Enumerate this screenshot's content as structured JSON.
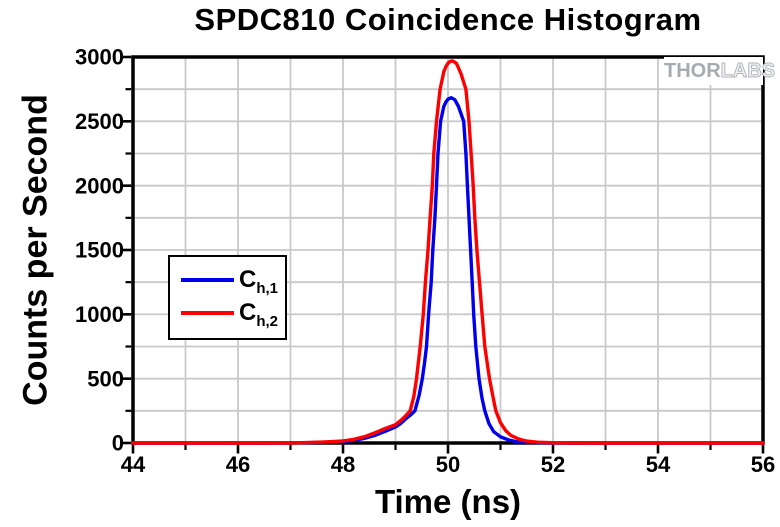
{
  "chart_data": {
    "type": "line",
    "title": "SPDC810 Coincidence Histogram",
    "xlabel": "Time (ns)",
    "ylabel": "Counts per Second",
    "x_axis": {
      "min": 44,
      "max": 56,
      "major_ticks": [
        44,
        46,
        48,
        50,
        52,
        54,
        56
      ],
      "major_tick_labels": [
        "44",
        "46",
        "48",
        "50",
        "52",
        "54",
        "56"
      ],
      "minor_ticks": [
        45,
        47,
        49,
        51,
        53,
        55
      ],
      "gridlines": [
        45,
        46,
        47,
        48,
        49,
        50,
        51,
        52,
        53,
        54,
        55
      ]
    },
    "y_axis": {
      "min": 0,
      "max": 3000,
      "major_ticks": [
        0,
        500,
        1000,
        1500,
        2000,
        2500,
        3000
      ],
      "major_tick_labels": [
        "0",
        "500",
        "1000",
        "1500",
        "2000",
        "2500",
        "3000"
      ],
      "minor_ticks": [
        250,
        750,
        1250,
        1750,
        2250,
        2750
      ],
      "gridlines": [
        250,
        500,
        750,
        1000,
        1250,
        1500,
        1750,
        2000,
        2250,
        2500,
        2750
      ]
    },
    "grid": "on",
    "legend_position": "left-center",
    "series": [
      {
        "name": "C_h,1",
        "color": "#0000ee",
        "peak": {
          "x": 50.06,
          "y": 2684
        },
        "points": [
          [
            44,
            0
          ],
          [
            44.5,
            0
          ],
          [
            45,
            0
          ],
          [
            45.5,
            0
          ],
          [
            46,
            0
          ],
          [
            46.5,
            0
          ],
          [
            47,
            1
          ],
          [
            47.3,
            2
          ],
          [
            47.6,
            5
          ],
          [
            47.8,
            8
          ],
          [
            48,
            12
          ],
          [
            48.2,
            20
          ],
          [
            48.4,
            35
          ],
          [
            48.6,
            58
          ],
          [
            48.8,
            90
          ],
          [
            49,
            125
          ],
          [
            49.1,
            152
          ],
          [
            49.2,
            190
          ],
          [
            49.3,
            222
          ],
          [
            49.37,
            250
          ],
          [
            49.45,
            370
          ],
          [
            49.51,
            500
          ],
          [
            49.55,
            615
          ],
          [
            49.59,
            750
          ],
          [
            49.63,
            1000
          ],
          [
            49.68,
            1250
          ],
          [
            49.71,
            1500
          ],
          [
            49.75,
            1750
          ],
          [
            49.78,
            2000
          ],
          [
            49.81,
            2250
          ],
          [
            49.86,
            2500
          ],
          [
            49.92,
            2615
          ],
          [
            49.96,
            2650
          ],
          [
            50,
            2672
          ],
          [
            50.06,
            2684
          ],
          [
            50.13,
            2668
          ],
          [
            50.2,
            2615
          ],
          [
            50.3,
            2500
          ],
          [
            50.34,
            2250
          ],
          [
            50.37,
            2000
          ],
          [
            50.4,
            1750
          ],
          [
            50.43,
            1500
          ],
          [
            50.46,
            1250
          ],
          [
            50.49,
            1000
          ],
          [
            50.53,
            750
          ],
          [
            50.59,
            500
          ],
          [
            50.65,
            345
          ],
          [
            50.7,
            250
          ],
          [
            50.78,
            150
          ],
          [
            50.87,
            88
          ],
          [
            51,
            48
          ],
          [
            51.15,
            24
          ],
          [
            51.3,
            11
          ],
          [
            51.5,
            4
          ],
          [
            51.7,
            2
          ],
          [
            52,
            1
          ],
          [
            52.4,
            0
          ],
          [
            53,
            0
          ],
          [
            54,
            0
          ],
          [
            55,
            0
          ],
          [
            56,
            0
          ]
        ]
      },
      {
        "name": "C_h,2",
        "color": "#ff0000",
        "peak": {
          "x": 50.08,
          "y": 2970
        },
        "points": [
          [
            44,
            0
          ],
          [
            44.5,
            0
          ],
          [
            45,
            0
          ],
          [
            45.5,
            0
          ],
          [
            46,
            0
          ],
          [
            46.5,
            0
          ],
          [
            47,
            1
          ],
          [
            47.3,
            3
          ],
          [
            47.6,
            7
          ],
          [
            47.8,
            11
          ],
          [
            48,
            16
          ],
          [
            48.2,
            28
          ],
          [
            48.4,
            48
          ],
          [
            48.6,
            78
          ],
          [
            48.8,
            112
          ],
          [
            49,
            142
          ],
          [
            49.1,
            175
          ],
          [
            49.2,
            214
          ],
          [
            49.28,
            250
          ],
          [
            49.35,
            365
          ],
          [
            49.4,
            500
          ],
          [
            49.47,
            750
          ],
          [
            49.53,
            1000
          ],
          [
            49.57,
            1250
          ],
          [
            49.62,
            1500
          ],
          [
            49.66,
            1750
          ],
          [
            49.7,
            2000
          ],
          [
            49.73,
            2250
          ],
          [
            49.78,
            2500
          ],
          [
            49.85,
            2750
          ],
          [
            49.92,
            2885
          ],
          [
            49.96,
            2925
          ],
          [
            50,
            2952
          ],
          [
            50.04,
            2965
          ],
          [
            50.08,
            2970
          ],
          [
            50.12,
            2962
          ],
          [
            50.16,
            2950
          ],
          [
            50.2,
            2915
          ],
          [
            50.25,
            2868
          ],
          [
            50.34,
            2750
          ],
          [
            50.4,
            2500
          ],
          [
            50.44,
            2250
          ],
          [
            50.48,
            2000
          ],
          [
            50.51,
            1750
          ],
          [
            50.55,
            1500
          ],
          [
            50.6,
            1250
          ],
          [
            50.65,
            1000
          ],
          [
            50.7,
            750
          ],
          [
            50.79,
            500
          ],
          [
            50.85,
            375
          ],
          [
            50.91,
            250
          ],
          [
            51,
            158
          ],
          [
            51.1,
            95
          ],
          [
            51.2,
            58
          ],
          [
            51.35,
            30
          ],
          [
            51.5,
            15
          ],
          [
            51.7,
            6
          ],
          [
            51.9,
            3
          ],
          [
            52.2,
            1
          ],
          [
            52.6,
            0
          ],
          [
            53,
            0
          ],
          [
            54,
            0
          ],
          [
            55,
            0
          ],
          [
            56,
            0
          ]
        ]
      }
    ]
  },
  "legend": {
    "items": [
      {
        "symbol": "C",
        "subscript": "h,1",
        "color": "#0000ee"
      },
      {
        "symbol": "C",
        "subscript": "h,2",
        "color": "#ff0000"
      }
    ]
  },
  "watermark": {
    "solid": "THOR",
    "outline": "LABS"
  },
  "colors": {
    "frame": "#000000",
    "grid": "#c9c9c9",
    "background": "#ffffff",
    "text": "#000000",
    "watermark_gray": "#a7aab1"
  }
}
